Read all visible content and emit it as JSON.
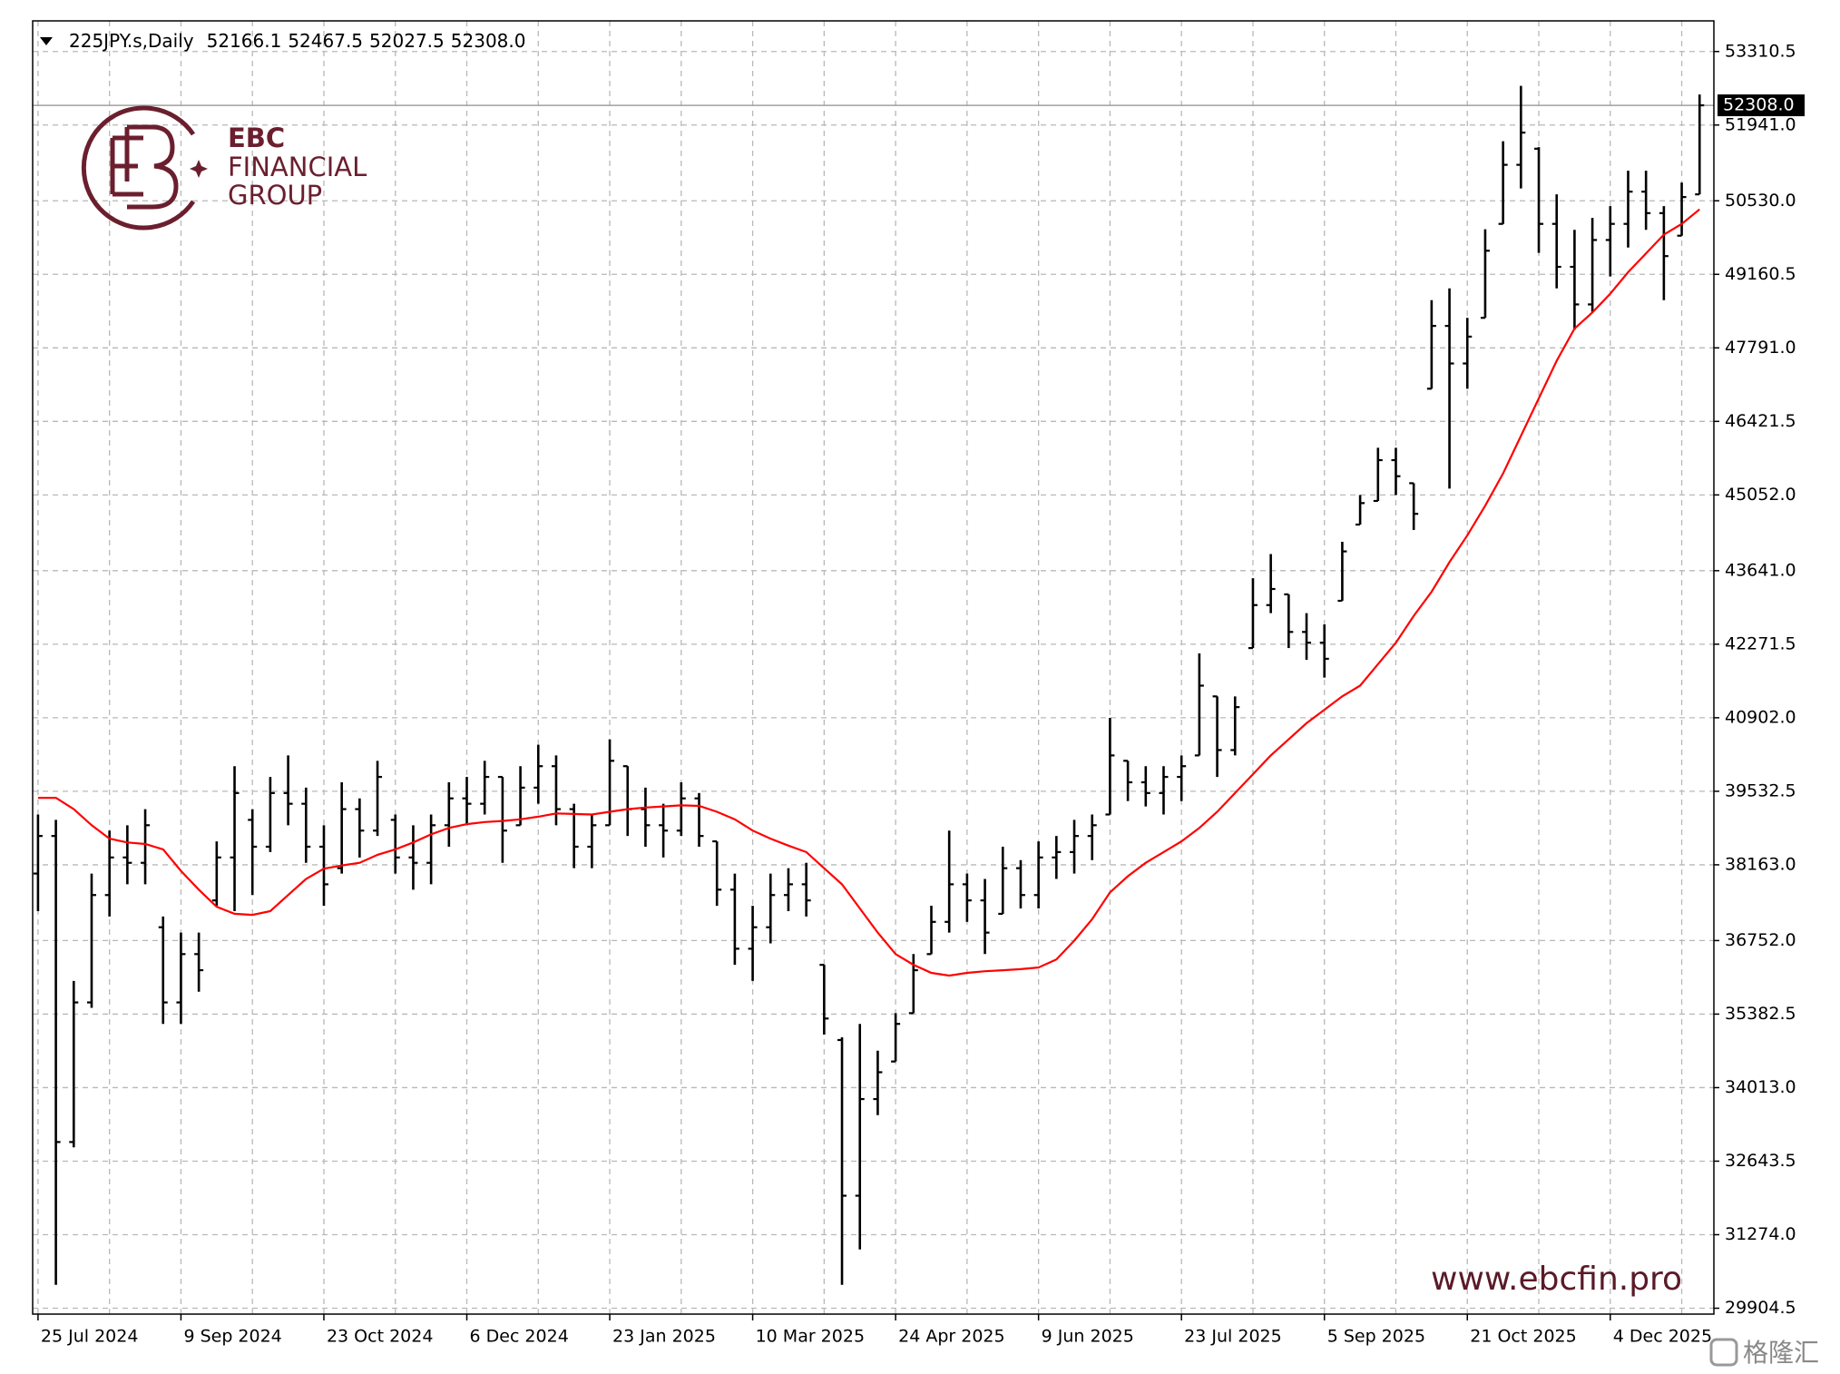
{
  "chart_data": {
    "type": "ohlc",
    "title": "225JPY.s,Daily",
    "header_values": [
      "52166.1",
      "52467.5",
      "52027.5",
      "52308.0"
    ],
    "xlim": [
      -0.3,
      93.8
    ],
    "ylim": [
      29795,
      53881
    ],
    "grid": true,
    "xticks": [
      {
        "value": 0,
        "label": "25 Jul 2024"
      },
      {
        "value": 8,
        "label": "9 Sep 2024"
      },
      {
        "value": 16,
        "label": "23 Oct 2024"
      },
      {
        "value": 24,
        "label": "6 Dec 2024"
      },
      {
        "value": 32,
        "label": "23 Jan 2025"
      },
      {
        "value": 40,
        "label": "10 Mar 2025"
      },
      {
        "value": 48,
        "label": "24 Apr 2025"
      },
      {
        "value": 56,
        "label": "9 Jun 2025"
      },
      {
        "value": 64,
        "label": "23 Jul 2025"
      },
      {
        "value": 72,
        "label": "5 Sep 2025"
      },
      {
        "value": 80,
        "label": "21 Oct 2025"
      },
      {
        "value": 88,
        "label": "4 Dec 2025"
      }
    ],
    "yticks": [
      53310.5,
      {
        "value": 51941,
        "label": "51941.0"
      },
      {
        "value": 50530,
        "label": "50530.0"
      },
      49160.5,
      {
        "value": 47791,
        "label": "47791.0"
      },
      46421.5,
      {
        "value": 45052,
        "label": "45052.0"
      },
      {
        "value": 43641,
        "label": "43641.0"
      },
      42271.5,
      {
        "value": 40902,
        "label": "40902.0"
      },
      39532.5,
      {
        "value": 38163,
        "label": "38163.0"
      },
      {
        "value": 36752,
        "label": "36752.0"
      },
      35382.5,
      {
        "value": 34013,
        "label": "34013.0"
      },
      32643.5,
      {
        "value": 31274,
        "label": "31274.0"
      },
      29904.5
    ],
    "last_price": {
      "value": 52308,
      "label": "52308.0"
    },
    "series": [
      {
        "type": "ohlc",
        "color": "#000000",
        "values": [
          [
            38000,
            39100,
            37300,
            38700
          ],
          [
            38700,
            39000,
            30340,
            33000
          ],
          [
            33000,
            36000,
            32900,
            35600
          ],
          [
            35600,
            38000,
            35500,
            37600
          ],
          [
            37600,
            38800,
            37200,
            38300
          ],
          [
            38300,
            38900,
            37800,
            38200
          ],
          [
            38200,
            39200,
            37800,
            38900
          ],
          [
            37000,
            37200,
            35200,
            35600
          ],
          [
            35600,
            36900,
            35200,
            36500
          ],
          [
            36500,
            36900,
            35800,
            36200
          ],
          [
            37500,
            38600,
            37400,
            38300
          ],
          [
            38300,
            40000,
            37300,
            39500
          ],
          [
            39000,
            39200,
            37600,
            38500
          ],
          [
            38500,
            39800,
            38400,
            39500
          ],
          [
            39500,
            40200,
            38900,
            39300
          ],
          [
            39300,
            39600,
            38200,
            38500
          ],
          [
            38500,
            38900,
            37400,
            37800
          ],
          [
            38100,
            39700,
            38000,
            39200
          ],
          [
            39200,
            39400,
            38300,
            38800
          ],
          [
            38800,
            40100,
            38700,
            39800
          ],
          [
            39000,
            39100,
            38000,
            38300
          ],
          [
            38300,
            38900,
            37700,
            38200
          ],
          [
            38200,
            39100,
            37800,
            38900
          ],
          [
            38900,
            39700,
            38500,
            39400
          ],
          [
            39400,
            39800,
            38900,
            39300
          ],
          [
            39300,
            40100,
            39100,
            39800
          ],
          [
            39800,
            39800,
            38200,
            38800
          ],
          [
            38900,
            40000,
            38900,
            39600
          ],
          [
            39600,
            40400,
            39300,
            40000
          ],
          [
            40000,
            40200,
            38900,
            39200
          ],
          [
            39200,
            39300,
            38100,
            38500
          ],
          [
            38500,
            39100,
            38100,
            38900
          ],
          [
            38900,
            40500,
            38900,
            40100
          ],
          [
            40000,
            40000,
            38700,
            39200
          ],
          [
            39200,
            39600,
            38500,
            38900
          ],
          [
            38900,
            39300,
            38300,
            38800
          ],
          [
            38800,
            39700,
            38700,
            39400
          ],
          [
            39400,
            39500,
            38500,
            38700
          ],
          [
            38600,
            38600,
            37400,
            37700
          ],
          [
            37700,
            38000,
            36300,
            36600
          ],
          [
            36600,
            37400,
            36000,
            37000
          ],
          [
            37000,
            38000,
            36700,
            37600
          ],
          [
            37600,
            38100,
            37300,
            37800
          ],
          [
            37800,
            38200,
            37200,
            37500
          ],
          [
            36300,
            36300,
            35000,
            35300
          ],
          [
            34900,
            34950,
            30340,
            32000
          ],
          [
            32000,
            35200,
            31000,
            33800
          ],
          [
            33800,
            34700,
            33500,
            34300
          ],
          [
            34500,
            35400,
            34500,
            35200
          ],
          [
            35400,
            36500,
            35400,
            36200
          ],
          [
            36500,
            37400,
            36500,
            37100
          ],
          [
            37100,
            38800,
            36900,
            37800
          ],
          [
            37800,
            38000,
            37100,
            37500
          ],
          [
            37500,
            37900,
            36500,
            36900
          ],
          [
            37250,
            38500,
            37250,
            38100
          ],
          [
            38100,
            38250,
            37350,
            37600
          ],
          [
            37600,
            38600,
            37350,
            38300
          ],
          [
            38300,
            38700,
            37900,
            38400
          ],
          [
            38400,
            39000,
            38000,
            38700
          ],
          [
            38700,
            39100,
            38250,
            38900
          ],
          [
            39100,
            40900,
            39100,
            40200
          ],
          [
            40100,
            40100,
            39350,
            39700
          ],
          [
            39700,
            40000,
            39250,
            39500
          ],
          [
            39500,
            40000,
            39100,
            39800
          ],
          [
            39800,
            40200,
            39350,
            40000
          ],
          [
            40200,
            42100,
            40200,
            41500
          ],
          [
            41300,
            41300,
            39800,
            40300
          ],
          [
            40300,
            41300,
            40200,
            41100
          ],
          [
            42200,
            43500,
            42200,
            43000
          ],
          [
            43000,
            43950,
            42850,
            43300
          ],
          [
            43200,
            43200,
            42200,
            42500
          ],
          [
            42500,
            42850,
            41980,
            42300
          ],
          [
            42300,
            42640,
            41650,
            42000
          ],
          [
            43080,
            44180,
            43080,
            44000
          ],
          [
            44500,
            45050,
            44500,
            44900
          ],
          [
            44940,
            45930,
            44940,
            45700
          ],
          [
            45700,
            45930,
            45050,
            45400
          ],
          [
            45270,
            45270,
            44400,
            44700
          ],
          [
            47030,
            48680,
            47030,
            48200
          ],
          [
            48200,
            48900,
            45170,
            47500
          ],
          [
            47500,
            48350,
            47030,
            48000
          ],
          [
            48350,
            50000,
            48350,
            49600
          ],
          [
            50100,
            51640,
            50100,
            51200
          ],
          [
            51200,
            52670,
            50760,
            51800
          ],
          [
            51500,
            51530,
            49560,
            50100
          ],
          [
            50100,
            50650,
            48900,
            49300
          ],
          [
            49300,
            49990,
            48130,
            48600
          ],
          [
            48600,
            50210,
            48460,
            49800
          ],
          [
            49800,
            50430,
            49120,
            50100
          ],
          [
            50100,
            51090,
            49660,
            50700
          ],
          [
            50700,
            51090,
            49990,
            50300
          ],
          [
            50300,
            50430,
            48680,
            49500
          ],
          [
            49880,
            50870,
            49880,
            50600
          ],
          [
            50650,
            52510,
            50650,
            52308
          ]
        ]
      },
      {
        "type": "line",
        "color": "#ff0000",
        "values": [
          39410,
          39410,
          39200,
          38900,
          38650,
          38580,
          38550,
          38450,
          38050,
          37700,
          37380,
          37250,
          37230,
          37300,
          37600,
          37900,
          38090,
          38150,
          38200,
          38350,
          38450,
          38580,
          38730,
          38850,
          38920,
          38960,
          38980,
          39010,
          39060,
          39120,
          39110,
          39100,
          39150,
          39200,
          39230,
          39250,
          39270,
          39260,
          39150,
          39010,
          38800,
          38650,
          38520,
          38400,
          38100,
          37800,
          37350,
          36900,
          36500,
          36300,
          36150,
          36100,
          36150,
          36180,
          36200,
          36220,
          36250,
          36400,
          36750,
          37150,
          37650,
          37950,
          38200,
          38400,
          38600,
          38850,
          39150,
          39500,
          39850,
          40200,
          40500,
          40800,
          41050,
          41300,
          41500,
          41900,
          42300,
          42800,
          43250,
          43800,
          44300,
          44850,
          45450,
          46150,
          46850,
          47550,
          48150,
          48450,
          48800,
          49200,
          49550,
          49900,
          50100,
          50370
        ]
      }
    ]
  },
  "branding": {
    "logo": [
      "EBC",
      "FINANCIAL",
      "GROUP"
    ],
    "url": "www.ebcfin.pro",
    "watermark": "格隆汇"
  }
}
